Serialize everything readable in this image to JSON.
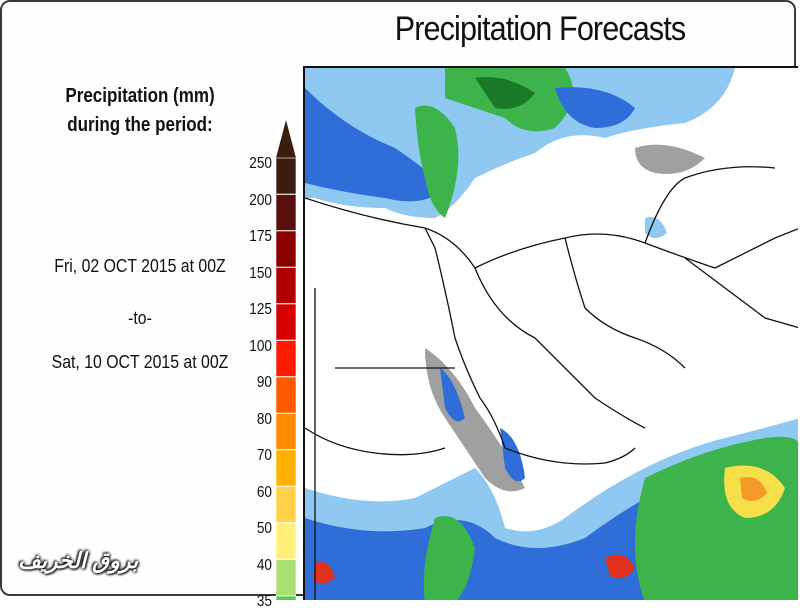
{
  "title": "Precipitation Forecasts",
  "legend": {
    "heading_line1": "Precipitation (mm)",
    "heading_line2": "during the period:",
    "start": "Fri, 02 OCT 2015 at 00Z",
    "separator": "-to-",
    "end": "Sat, 10 OCT 2015 at 00Z",
    "ticks": [
      {
        "label": "250",
        "color": "#3b1d0f"
      },
      {
        "label": "200",
        "color": "#5a0f0f"
      },
      {
        "label": "175",
        "color": "#8b0000"
      },
      {
        "label": "150",
        "color": "#b00000"
      },
      {
        "label": "125",
        "color": "#d70000"
      },
      {
        "label": "100",
        "color": "#ff1a00"
      },
      {
        "label": "90",
        "color": "#ff5a00"
      },
      {
        "label": "80",
        "color": "#ff8c00"
      },
      {
        "label": "70",
        "color": "#ffb000"
      },
      {
        "label": "60",
        "color": "#ffd24a"
      },
      {
        "label": "50",
        "color": "#fff07a"
      },
      {
        "label": "40",
        "color": "#a8e070"
      },
      {
        "label": "35",
        "color": "#5cc85c"
      }
    ]
  },
  "colors": {
    "light_blue": "#8fc8f0",
    "blue": "#2f6ed8",
    "dark_blue": "#1a3fa0",
    "green": "#3cb44b",
    "dark_green": "#1b7a2a",
    "yellow": "#f5e04a",
    "orange": "#f39a2a",
    "red": "#e0301e",
    "gray": "#a0a0a0"
  },
  "watermark": "بروق الخريف"
}
